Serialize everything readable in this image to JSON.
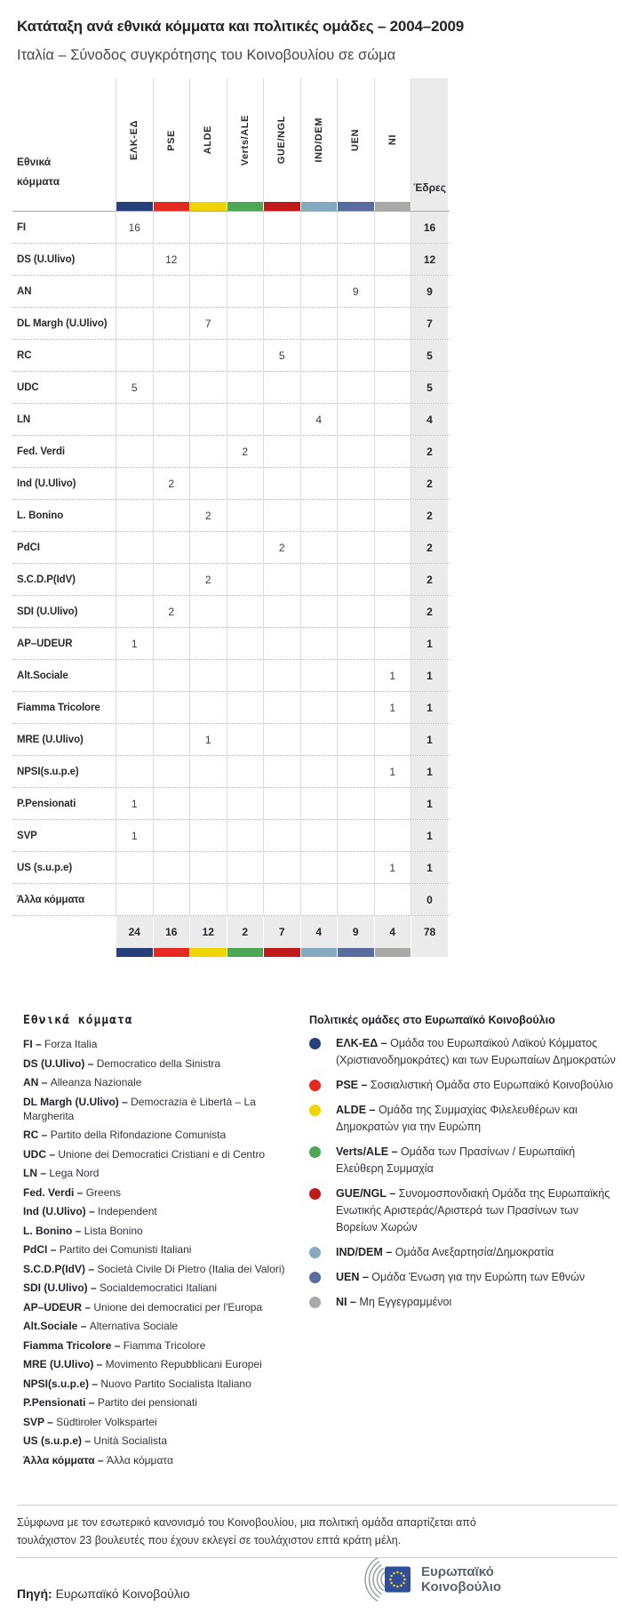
{
  "chart_data": {
    "type": "table",
    "title": "Κατάταξη ανά εθνικά κόμματα και πολιτικές ομάδες – 2004–2009",
    "subtitle": "Ιταλία – Σύνοδος συγκρότησης του Κοινοβουλίου σε σώμα",
    "row_axis_label": "Εθνικά κόμματα",
    "seats_column_label": "Έδρες",
    "political_groups": [
      {
        "name": "ΕΛΚ-ΕΔ",
        "color": "#26407c"
      },
      {
        "name": "PSE",
        "color": "#e52820"
      },
      {
        "name": "ALDE",
        "color": "#eed500"
      },
      {
        "name": "Verts/ALE",
        "color": "#4ba751"
      },
      {
        "name": "GUE/NGL",
        "color": "#c01a1b"
      },
      {
        "name": "IND/DEM",
        "color": "#85aabf"
      },
      {
        "name": "UEN",
        "color": "#5a6c9e"
      },
      {
        "name": "NI",
        "color": "#a9a9a7"
      }
    ],
    "rows": [
      {
        "party": "FI",
        "values": [
          16,
          null,
          null,
          null,
          null,
          null,
          null,
          null
        ],
        "seats": 16
      },
      {
        "party": "DS (U.Ulivo)",
        "values": [
          null,
          12,
          null,
          null,
          null,
          null,
          null,
          null
        ],
        "seats": 12
      },
      {
        "party": "AN",
        "values": [
          null,
          null,
          null,
          null,
          null,
          null,
          9,
          null
        ],
        "seats": 9
      },
      {
        "party": "DL Margh (U.Ulivo)",
        "values": [
          null,
          null,
          7,
          null,
          null,
          null,
          null,
          null
        ],
        "seats": 7
      },
      {
        "party": "RC",
        "values": [
          null,
          null,
          null,
          null,
          5,
          null,
          null,
          null
        ],
        "seats": 5
      },
      {
        "party": "UDC",
        "values": [
          5,
          null,
          null,
          null,
          null,
          null,
          null,
          null
        ],
        "seats": 5
      },
      {
        "party": "LN",
        "values": [
          null,
          null,
          null,
          null,
          null,
          4,
          null,
          null
        ],
        "seats": 4
      },
      {
        "party": "Fed. Verdi",
        "values": [
          null,
          null,
          null,
          2,
          null,
          null,
          null,
          null
        ],
        "seats": 2
      },
      {
        "party": "Ind (U.Ulivo)",
        "values": [
          null,
          2,
          null,
          null,
          null,
          null,
          null,
          null
        ],
        "seats": 2
      },
      {
        "party": "L. Bonino",
        "values": [
          null,
          null,
          2,
          null,
          null,
          null,
          null,
          null
        ],
        "seats": 2
      },
      {
        "party": "PdCI",
        "values": [
          null,
          null,
          null,
          null,
          2,
          null,
          null,
          null
        ],
        "seats": 2
      },
      {
        "party": "S.C.D.P(IdV)",
        "values": [
          null,
          null,
          2,
          null,
          null,
          null,
          null,
          null
        ],
        "seats": 2
      },
      {
        "party": "SDI (U.Ulivo)",
        "values": [
          null,
          2,
          null,
          null,
          null,
          null,
          null,
          null
        ],
        "seats": 2
      },
      {
        "party": "AP–UDEUR",
        "values": [
          1,
          null,
          null,
          null,
          null,
          null,
          null,
          null
        ],
        "seats": 1
      },
      {
        "party": "Alt.Sociale",
        "values": [
          null,
          null,
          null,
          null,
          null,
          null,
          null,
          1
        ],
        "seats": 1
      },
      {
        "party": "Fiamma Tricolore",
        "values": [
          null,
          null,
          null,
          null,
          null,
          null,
          null,
          1
        ],
        "seats": 1
      },
      {
        "party": "MRE (U.Ulivo)",
        "values": [
          null,
          null,
          1,
          null,
          null,
          null,
          null,
          null
        ],
        "seats": 1
      },
      {
        "party": "NPSI(s.u.p.e)",
        "values": [
          null,
          null,
          null,
          null,
          null,
          null,
          null,
          1
        ],
        "seats": 1
      },
      {
        "party": "P.Pensionati",
        "values": [
          1,
          null,
          null,
          null,
          null,
          null,
          null,
          null
        ],
        "seats": 1
      },
      {
        "party": "SVP",
        "values": [
          1,
          null,
          null,
          null,
          null,
          null,
          null,
          null
        ],
        "seats": 1
      },
      {
        "party": "US (s.u.p.e)",
        "values": [
          null,
          null,
          null,
          null,
          null,
          null,
          null,
          1
        ],
        "seats": 1
      },
      {
        "party": "Άλλα κόμματα",
        "values": [
          null,
          null,
          null,
          null,
          null,
          null,
          null,
          null
        ],
        "seats": 0
      }
    ],
    "totals": {
      "values": [
        24,
        16,
        12,
        2,
        7,
        4,
        9,
        4
      ],
      "seats": 78
    }
  },
  "legend_parties": {
    "heading": "Εθνικά κόμματα",
    "items": [
      {
        "abbr": "FI",
        "name": "Forza Italia"
      },
      {
        "abbr": "DS (U.Ulivo)",
        "name": "Democratico della Sinistra"
      },
      {
        "abbr": "AN",
        "name": "Alleanza Nazionale"
      },
      {
        "abbr": "DL Margh (U.Ulivo)",
        "name": "Democrazia è Libertà – La Margherita"
      },
      {
        "abbr": "RC",
        "name": "Partito della Rifondazione Comunista"
      },
      {
        "abbr": "UDC",
        "name": "Unione dei Democratici Cristiani e di Centro"
      },
      {
        "abbr": "LN",
        "name": "Lega Nord"
      },
      {
        "abbr": "Fed. Verdi",
        "name": "Greens"
      },
      {
        "abbr": "Ind (U.Ulivo)",
        "name": "Independent"
      },
      {
        "abbr": "L. Bonino",
        "name": "Lista Bonino"
      },
      {
        "abbr": "PdCI",
        "name": "Partito dei Comunisti Italiani"
      },
      {
        "abbr": "S.C.D.P(IdV)",
        "name": "Società Civile Di Pietro (Italia dei Valori)"
      },
      {
        "abbr": "SDI (U.Ulivo)",
        "name": "Socialdemocratici Italiani"
      },
      {
        "abbr": "AP–UDEUR",
        "name": "Unione dei democratici per l'Europa"
      },
      {
        "abbr": "Alt.Sociale",
        "name": "Alternativa Sociale"
      },
      {
        "abbr": "Fiamma Tricolore",
        "name": "Fiamma Tricolore"
      },
      {
        "abbr": "MRE (U.Ulivo)",
        "name": "Movimento Repubblicani Europei"
      },
      {
        "abbr": "NPSI(s.u.p.e)",
        "name": "Nuovo Partito Socialista Italiano"
      },
      {
        "abbr": "P.Pensionati",
        "name": "Partito dei pensionati"
      },
      {
        "abbr": "SVP",
        "name": "Südtiroler Volkspartei"
      },
      {
        "abbr": "US (s.u.p.e)",
        "name": "Unità Socialista"
      },
      {
        "abbr": "Άλλα κόμματα",
        "name": "Άλλα κόμματα"
      }
    ]
  },
  "legend_groups": {
    "heading": "Πολιτικές ομάδες στο Ευρωπαϊκό Κοινοβούλιο",
    "items": [
      {
        "abbr": "ΕΛΚ-ΕΔ",
        "color": "#26407c",
        "desc": "Ομάδα του Ευρωπαϊκού Λαϊκού Κόμματος (Χριστιανοδημοκράτες) και των Ευρωπαίων Δημοκρατών"
      },
      {
        "abbr": "PSE",
        "color": "#e52820",
        "desc": "Σοσιαλιστική Ομάδα στο Ευρωπαϊκό Κοινοβούλιο"
      },
      {
        "abbr": "ALDE",
        "color": "#eed500",
        "desc": "Ομάδα της Συμμαχίας Φιλελευθέρων και Δημοκρατών για την Ευρώπη"
      },
      {
        "abbr": "Verts/ALE",
        "color": "#4ba751",
        "desc": "Ομάδα των Πρασίνων / Ευρωπαϊκή Ελεύθερη Συμμαχία"
      },
      {
        "abbr": "GUE/NGL",
        "color": "#c01a1b",
        "desc": "Συνομοσπονδιακή Ομάδα της Ευρωπαϊκής Ενωτικής Αριστεράς/Αριστερά των Πρασίνων των Βορείων Χωρών"
      },
      {
        "abbr": "IND/DEM",
        "color": "#85aabf",
        "desc": "Ομάδα Ανεξαρτησία/Δημοκρατία"
      },
      {
        "abbr": "UEN",
        "color": "#5a6c9e",
        "desc": "Ομάδα Ένωση για την Ευρώπη των Εθνών"
      },
      {
        "abbr": "NI",
        "color": "#a9a9a7",
        "desc": "Μη Εγγεγραμμένοι"
      }
    ]
  },
  "footer": {
    "note": "Σύμφωνα με τον εσωτερικό κανονισμό του Κοινοβουλίου, μια πολιτική ομάδα απαρτίζεται από τουλάχιστον 23 βουλευτές που έχουν εκλεγεί σε τουλάχιστον επτά κράτη μέλη.",
    "source_label": "Πηγή:",
    "source_value": "Ευρωπαϊκό Κοινοβούλιο",
    "logo_line1": "Ευρωπαϊκό",
    "logo_line2": "Κοινοβούλιο"
  }
}
